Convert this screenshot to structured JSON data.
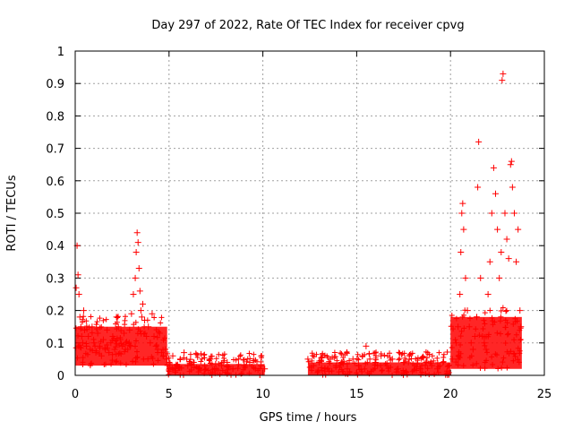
{
  "chart_data": {
    "type": "scatter",
    "title": "Day 297 of 2022, Rate Of TEC Index for receiver cpvg",
    "xlabel": "GPS time / hours",
    "ylabel": "ROTI / TECUs",
    "xlim": [
      0,
      25
    ],
    "ylim": [
      0,
      1
    ],
    "x_ticks": [
      0,
      5,
      10,
      15,
      20,
      25
    ],
    "x_tick_labels": [
      "0",
      "5",
      "10",
      "15",
      "20",
      "25"
    ],
    "y_ticks": [
      0,
      0.1,
      0.2,
      0.3,
      0.4,
      0.5,
      0.6,
      0.7,
      0.8,
      0.9,
      1
    ],
    "y_tick_labels": [
      "0",
      "0.1",
      "0.2",
      "0.3",
      "0.4",
      "0.5",
      "0.6",
      "0.7",
      "0.8",
      "0.9",
      "1"
    ],
    "grid": true,
    "marker": "plus",
    "color": "#ff0000",
    "series": [
      {
        "x": [
          0.05,
          0.1,
          0.15,
          0.2,
          0.25,
          0.3,
          0.35,
          0.4,
          0.45,
          0.5,
          0.6,
          0.7,
          0.8,
          0.9,
          1.0,
          1.1,
          1.2,
          1.3,
          1.4,
          1.5,
          1.6,
          1.7,
          1.8,
          1.9,
          2.0,
          2.1,
          2.2,
          2.3,
          2.4,
          2.5,
          2.6,
          2.7,
          2.8,
          2.9,
          3.0,
          3.1,
          3.2,
          3.25,
          3.3,
          3.35,
          3.4,
          3.45,
          3.5,
          3.55,
          3.6,
          3.7,
          3.8,
          3.9,
          4.0,
          4.1,
          4.2,
          4.3,
          4.4,
          4.5,
          4.6,
          4.7,
          4.8,
          4.9,
          5.0,
          5.2,
          5.4,
          5.6,
          5.8,
          6.0,
          6.3,
          6.6,
          6.9,
          7.2,
          7.5,
          7.8,
          8.1,
          8.4,
          8.7,
          9.0,
          9.3,
          9.6,
          9.9,
          10.1,
          12.4,
          12.7,
          13.0,
          13.3,
          13.6,
          13.9,
          14.2,
          14.5,
          14.8,
          15.1,
          15.3,
          15.5,
          15.7,
          16.0,
          16.3,
          16.6,
          16.9,
          17.2,
          17.5,
          17.8,
          18.1,
          18.4,
          18.7,
          19.0,
          19.3,
          19.6,
          19.9,
          20.1,
          20.3,
          20.4,
          20.5,
          20.55,
          20.6,
          20.65,
          20.7,
          20.8,
          20.9,
          21.0,
          21.1,
          21.2,
          21.3,
          21.4,
          21.45,
          21.5,
          21.6,
          21.7,
          21.8,
          21.9,
          22.0,
          22.1,
          22.2,
          22.3,
          22.4,
          22.5,
          22.6,
          22.7,
          22.75,
          22.8,
          22.9,
          23.0,
          23.1,
          23.2,
          23.25,
          23.3,
          23.4,
          23.5,
          23.6,
          23.7,
          23.75
        ],
        "y": [
          0.27,
          0.4,
          0.31,
          0.25,
          0.18,
          0.15,
          0.12,
          0.1,
          0.2,
          0.14,
          0.09,
          0.12,
          0.08,
          0.15,
          0.1,
          0.07,
          0.13,
          0.09,
          0.06,
          0.11,
          0.08,
          0.14,
          0.07,
          0.1,
          0.12,
          0.08,
          0.18,
          0.15,
          0.11,
          0.09,
          0.13,
          0.1,
          0.08,
          0.14,
          0.19,
          0.25,
          0.3,
          0.38,
          0.44,
          0.41,
          0.33,
          0.26,
          0.2,
          0.18,
          0.22,
          0.17,
          0.12,
          0.15,
          0.1,
          0.19,
          0.12,
          0.09,
          0.08,
          0.13,
          0.07,
          0.06,
          0.08,
          0.05,
          0.04,
          0.06,
          0.03,
          0.05,
          0.07,
          0.03,
          0.04,
          0.02,
          0.03,
          0.05,
          0.02,
          0.03,
          0.04,
          0.02,
          0.05,
          0.03,
          0.04,
          0.02,
          0.03,
          0.02,
          0.05,
          0.03,
          0.04,
          0.02,
          0.05,
          0.03,
          0.04,
          0.02,
          0.05,
          0.03,
          0.06,
          0.09,
          0.05,
          0.04,
          0.06,
          0.03,
          0.05,
          0.02,
          0.04,
          0.06,
          0.03,
          0.02,
          0.04,
          0.03,
          0.02,
          0.04,
          0.03,
          0.05,
          0.1,
          0.15,
          0.25,
          0.38,
          0.5,
          0.53,
          0.45,
          0.3,
          0.2,
          0.15,
          0.1,
          0.08,
          0.12,
          0.18,
          0.58,
          0.72,
          0.3,
          0.12,
          0.1,
          0.08,
          0.25,
          0.35,
          0.5,
          0.64,
          0.56,
          0.45,
          0.3,
          0.38,
          0.91,
          0.93,
          0.5,
          0.42,
          0.36,
          0.65,
          0.66,
          0.58,
          0.5,
          0.35,
          0.45,
          0.2,
          0.15
        ],
        "baseline_band": [
          {
            "x_start": 0,
            "x_end": 4.9,
            "y_low": 0.03,
            "y_high": 0.15
          },
          {
            "x_start": 4.9,
            "x_end": 10.1,
            "y_low": 0.0,
            "y_high": 0.035
          },
          {
            "x_start": 12.4,
            "x_end": 20.0,
            "y_low": 0.0,
            "y_high": 0.04
          },
          {
            "x_start": 20.0,
            "x_end": 23.8,
            "y_low": 0.02,
            "y_high": 0.18
          }
        ]
      }
    ]
  }
}
